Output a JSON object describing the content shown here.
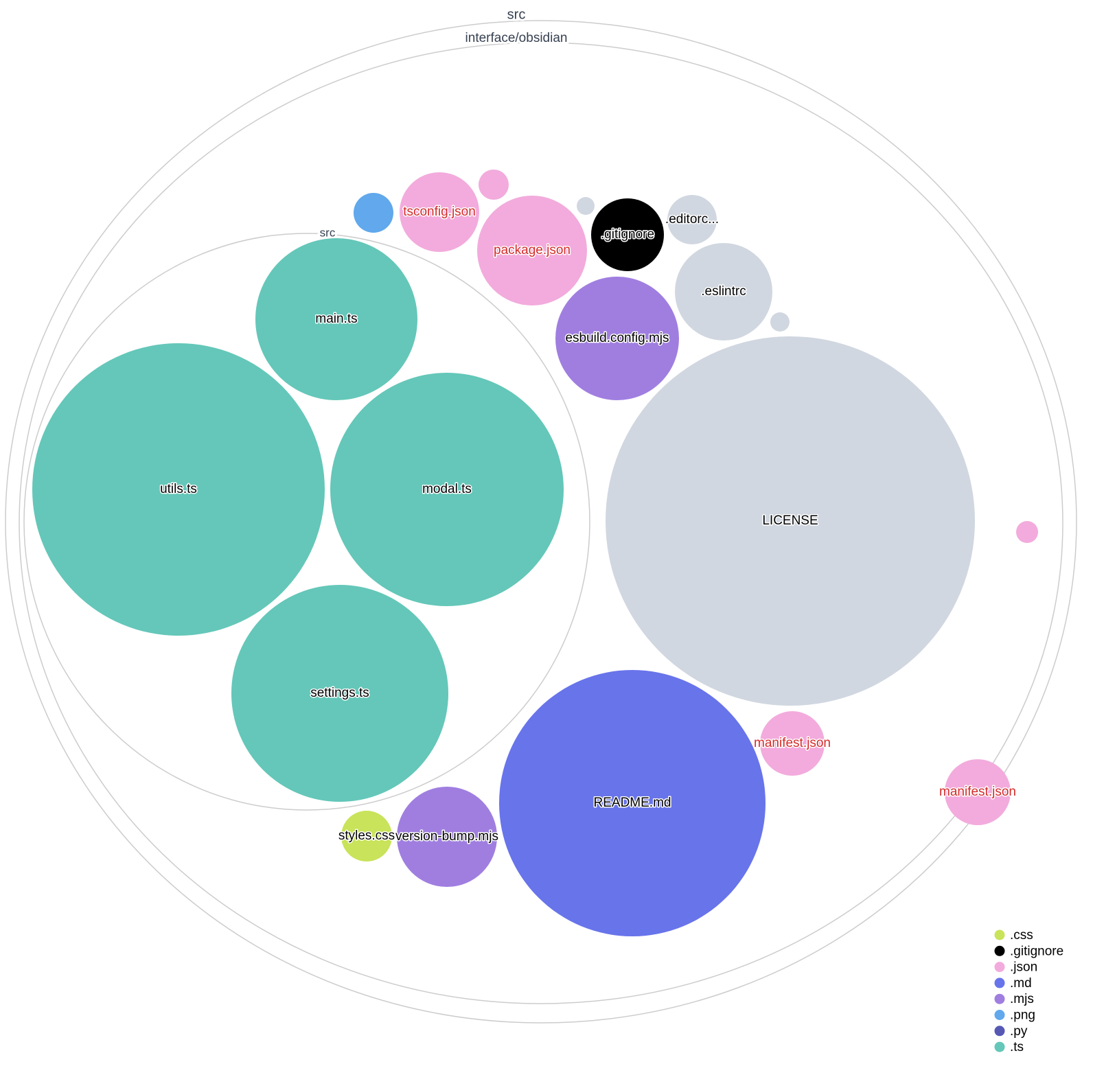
{
  "colors": {
    ".css": "#c9e35a",
    ".gitignore": "#000000",
    ".json": "#f2abdc",
    ".md": "#6874ea",
    ".mjs": "#a07ee0",
    ".png": "#61a8ec",
    ".py": "#5658b4",
    ".ts": "#64c7b9",
    "other": "#d1d7e0",
    "folder_stroke": "#cccccc",
    "json_label": "#d42a2a"
  },
  "folders": [
    {
      "id": "root",
      "label": "src"
    },
    {
      "id": "obsidian",
      "label": "interface/obsidian"
    },
    {
      "id": "inner-src",
      "label": "src"
    }
  ],
  "files": [
    {
      "id": "main",
      "label": "main.ts",
      "ext": ".ts"
    },
    {
      "id": "utils",
      "label": "utils.ts",
      "ext": ".ts"
    },
    {
      "id": "modal",
      "label": "modal.ts",
      "ext": ".ts"
    },
    {
      "id": "settings",
      "label": "settings.ts",
      "ext": ".ts"
    },
    {
      "id": "png1",
      "label": "",
      "ext": ".png"
    },
    {
      "id": "tsconfig",
      "label": "tsconfig.json",
      "ext": ".json"
    },
    {
      "id": "json-small1",
      "label": "",
      "ext": ".json"
    },
    {
      "id": "package",
      "label": "package.json",
      "ext": ".json"
    },
    {
      "id": "other-small1",
      "label": "",
      "ext": "other"
    },
    {
      "id": "gitignore",
      "label": ".gitignore",
      "ext": ".gitignore"
    },
    {
      "id": "editorconfig",
      "label": ".editorc...",
      "ext": "other"
    },
    {
      "id": "eslintrc",
      "label": ".eslintrc",
      "ext": "other"
    },
    {
      "id": "other-small2",
      "label": "",
      "ext": "other"
    },
    {
      "id": "esbuild",
      "label": "esbuild.config.mjs",
      "ext": ".mjs"
    },
    {
      "id": "license",
      "label": "LICENSE",
      "ext": "other"
    },
    {
      "id": "readme",
      "label": "README.md",
      "ext": ".md"
    },
    {
      "id": "manifest1",
      "label": "manifest.json",
      "ext": ".json"
    },
    {
      "id": "manifest2",
      "label": "manifest.json",
      "ext": ".json"
    },
    {
      "id": "json-small2",
      "label": "",
      "ext": ".json"
    },
    {
      "id": "styles",
      "label": "styles.css",
      "ext": ".css"
    },
    {
      "id": "versionbump",
      "label": "version-bump.mjs",
      "ext": ".mjs"
    }
  ],
  "legend": [
    ".css",
    ".gitignore",
    ".json",
    ".md",
    ".mjs",
    ".png",
    ".py",
    ".ts"
  ]
}
